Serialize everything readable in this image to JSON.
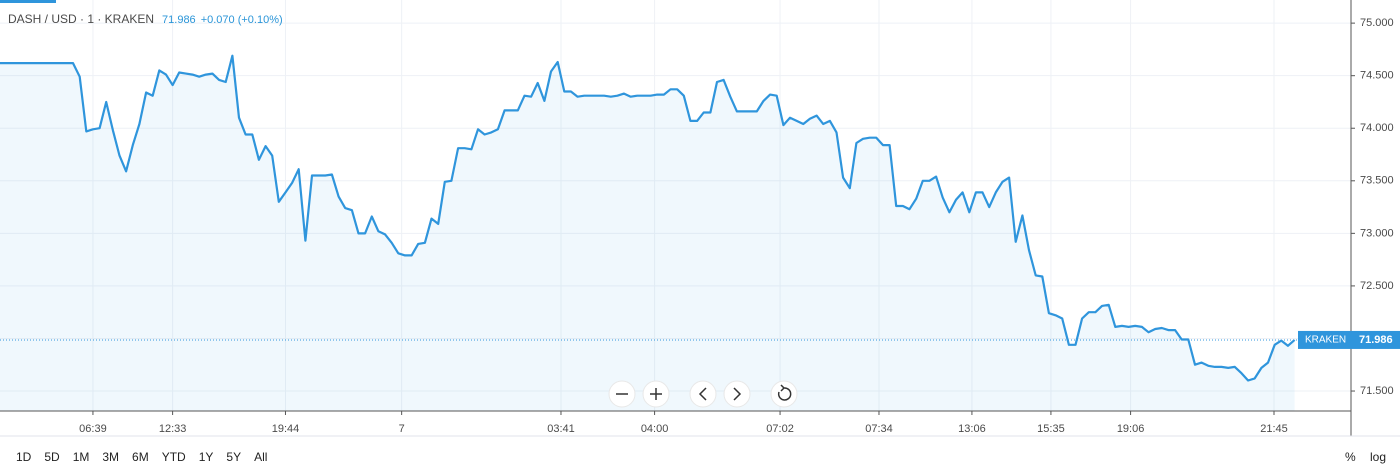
{
  "chart_data": {
    "type": "line",
    "title": "DASH / USD · 1 · KRAKEN",
    "change": "+0.070 (+0.10%)",
    "last_price": 71.986,
    "last_label": "KRAKEN",
    "x": [
      0,
      11,
      12,
      13,
      14,
      15,
      16,
      17,
      18,
      19,
      20,
      21,
      22,
      23,
      24,
      25,
      26,
      27,
      28,
      29,
      30,
      31,
      32,
      33,
      34,
      35,
      36,
      37,
      38,
      39,
      40,
      41,
      42,
      43,
      44,
      45,
      46,
      47,
      48,
      49,
      50,
      51,
      52,
      53,
      54,
      55,
      56,
      57,
      58,
      59,
      60,
      61,
      62,
      63,
      64,
      65,
      66,
      67,
      68,
      69,
      70,
      71,
      72,
      73,
      74,
      75,
      76,
      77,
      78,
      79,
      80,
      81,
      82,
      83,
      84,
      85,
      86,
      87,
      88,
      89,
      90,
      91,
      92,
      93,
      94,
      95,
      96,
      97,
      98,
      99,
      100,
      101,
      102,
      103,
      104,
      105,
      106,
      107,
      108,
      109,
      110,
      111,
      112,
      113,
      114,
      115,
      116,
      117,
      118,
      119,
      120,
      121,
      122,
      123,
      124,
      125,
      126,
      127,
      128,
      129,
      130,
      131,
      132,
      133,
      134,
      135,
      136,
      137,
      138,
      139,
      140,
      141,
      142,
      143,
      144,
      145,
      146,
      147,
      148,
      149,
      150,
      151,
      152,
      153,
      154,
      155,
      156,
      157,
      158,
      159,
      160,
      161,
      162,
      163,
      164,
      165,
      166,
      167,
      168,
      169,
      170,
      171,
      172,
      173,
      174,
      175,
      176,
      177,
      178,
      179,
      180,
      181,
      182,
      183,
      184,
      185,
      186,
      187,
      188,
      189,
      190,
      191,
      192,
      193,
      194,
      195
    ],
    "series": [
      {
        "name": "DASH / USD",
        "color": "#2f95dc",
        "values": [
          74.62,
          74.62,
          74.49,
          73.97,
          73.99,
          74.0,
          74.25,
          73.98,
          73.74,
          73.59,
          73.84,
          74.04,
          74.34,
          74.31,
          74.55,
          74.51,
          74.41,
          74.53,
          74.52,
          74.51,
          74.49,
          74.51,
          74.52,
          74.46,
          74.44,
          74.69,
          74.1,
          73.94,
          73.94,
          73.7,
          73.83,
          73.74,
          73.3,
          73.39,
          73.48,
          73.61,
          72.93,
          73.55,
          73.55,
          73.55,
          73.56,
          73.35,
          73.24,
          73.22,
          73.0,
          73.0,
          73.16,
          73.02,
          72.99,
          72.91,
          72.81,
          72.79,
          72.79,
          72.9,
          72.91,
          73.14,
          73.09,
          73.49,
          73.5,
          73.81,
          73.81,
          73.8,
          73.99,
          73.94,
          73.96,
          73.99,
          74.17,
          74.17,
          74.17,
          74.31,
          74.3,
          74.43,
          74.26,
          74.54,
          74.63,
          74.35,
          74.35,
          74.3,
          74.31,
          74.31,
          74.31,
          74.31,
          74.3,
          74.31,
          74.33,
          74.3,
          74.31,
          74.31,
          74.31,
          74.32,
          74.32,
          74.37,
          74.37,
          74.31,
          74.07,
          74.07,
          74.15,
          74.15,
          74.44,
          74.46,
          74.3,
          74.16,
          74.16,
          74.16,
          74.16,
          74.26,
          74.32,
          74.31,
          74.03,
          74.1,
          74.07,
          74.04,
          74.09,
          74.12,
          74.04,
          74.07,
          73.96,
          73.53,
          73.43,
          73.86,
          73.9,
          73.91,
          73.91,
          73.84,
          73.84,
          73.26,
          73.26,
          73.23,
          73.33,
          73.5,
          73.5,
          73.54,
          73.34,
          73.2,
          73.32,
          73.39,
          73.2,
          73.39,
          73.39,
          73.25,
          73.39,
          73.49,
          73.53,
          72.92,
          73.17,
          72.84,
          72.6,
          72.59,
          72.24,
          72.22,
          72.19,
          71.94,
          71.94,
          72.19,
          72.25,
          72.25,
          72.31,
          72.32,
          72.11,
          72.12,
          72.11,
          72.12,
          72.11,
          72.06,
          72.09,
          72.1,
          72.08,
          72.08,
          71.99,
          71.99,
          71.75,
          71.77,
          71.74,
          71.73,
          71.73,
          71.72,
          71.73,
          71.67,
          71.6,
          71.62,
          71.72,
          71.77,
          71.94,
          71.98,
          71.93,
          71.986
        ]
      }
    ],
    "xlim": [
      0,
      203.5
    ],
    "xticks": [
      {
        "value": 14,
        "label": "06:39"
      },
      {
        "value": 26,
        "label": "12:33"
      },
      {
        "value": 43,
        "label": "19:44"
      },
      {
        "value": 60.5,
        "label": "7"
      },
      {
        "value": 84.5,
        "label": "03:41"
      },
      {
        "value": 98.6,
        "label": "04:00"
      },
      {
        "value": 117.5,
        "label": "07:02"
      },
      {
        "value": 132.4,
        "label": "07:34"
      },
      {
        "value": 146.4,
        "label": "13:06"
      },
      {
        "value": 158.3,
        "label": "15:35"
      },
      {
        "value": 170.3,
        "label": "19:06"
      },
      {
        "value": 191.9,
        "label": "21:45"
      }
    ],
    "ylim": [
      71.31,
      75.22
    ],
    "yticks": [
      {
        "value": 71.5,
        "label": "71.500"
      },
      {
        "value": 72,
        "label": "72.000"
      },
      {
        "value": 72.5,
        "label": "72.500"
      },
      {
        "value": 73,
        "label": "73.000"
      },
      {
        "value": 73.5,
        "label": "73.500"
      },
      {
        "value": 74,
        "label": "74.000"
      },
      {
        "value": 74.5,
        "label": "74.500"
      },
      {
        "value": 75,
        "label": "75.000"
      }
    ],
    "grid": true
  },
  "toolbar": {
    "ranges": [
      "1D",
      "5D",
      "1M",
      "3M",
      "6M",
      "YTD",
      "1Y",
      "5Y",
      "All"
    ],
    "percent": "%",
    "log": "log"
  }
}
